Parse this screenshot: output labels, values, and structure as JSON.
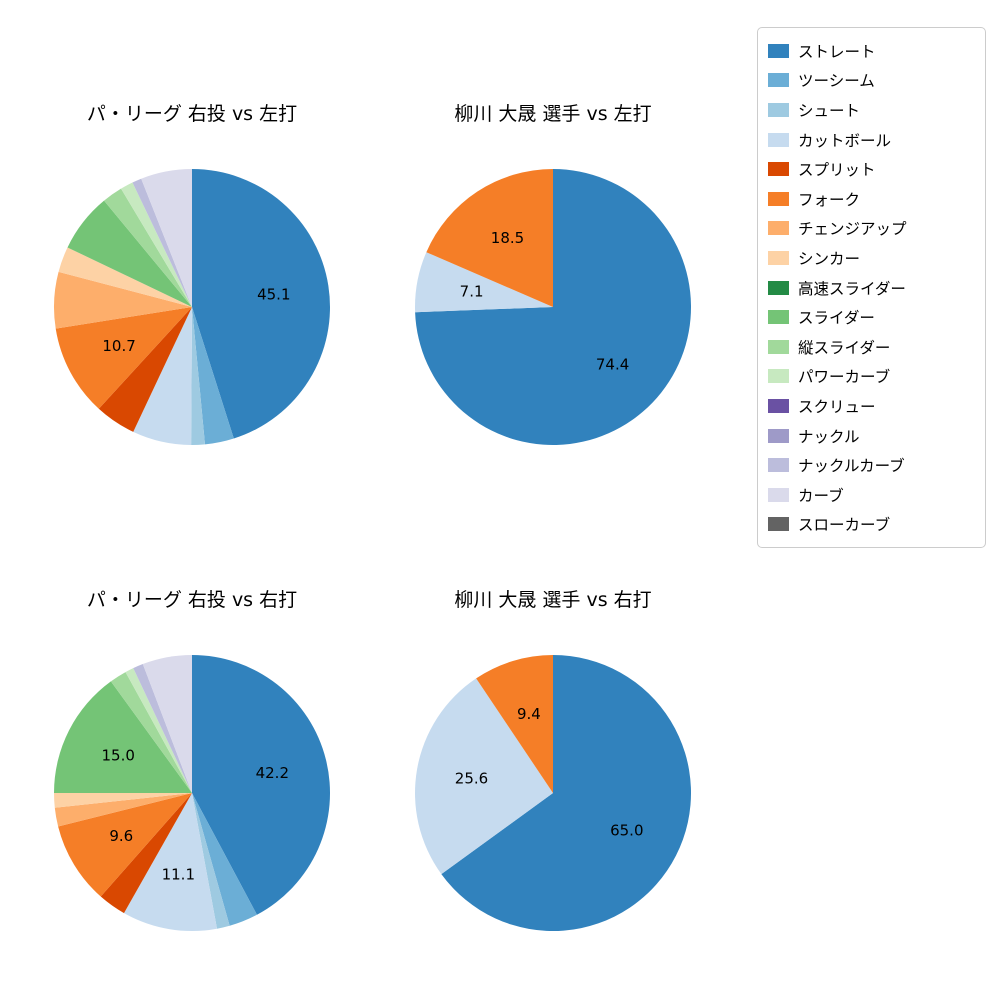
{
  "legend": {
    "position": "top-right",
    "items": [
      {
        "label": "ストレート",
        "color": "#3182bd"
      },
      {
        "label": "ツーシーム",
        "color": "#6baed6"
      },
      {
        "label": "シュート",
        "color": "#9ecae1"
      },
      {
        "label": "カットボール",
        "color": "#c6dbef"
      },
      {
        "label": "スプリット",
        "color": "#d94801"
      },
      {
        "label": "フォーク",
        "color": "#f57e27"
      },
      {
        "label": "チェンジアップ",
        "color": "#fdae6b"
      },
      {
        "label": "シンカー",
        "color": "#fdd2a5"
      },
      {
        "label": "高速スライダー",
        "color": "#238b45"
      },
      {
        "label": "スライダー",
        "color": "#74c476"
      },
      {
        "label": "縦スライダー",
        "color": "#a1d99b"
      },
      {
        "label": "パワーカーブ",
        "color": "#c7e9c0"
      },
      {
        "label": "スクリュー",
        "color": "#6a51a3"
      },
      {
        "label": "ナックル",
        "color": "#9e9ac8"
      },
      {
        "label": "ナックルカーブ",
        "color": "#bcbddc"
      },
      {
        "label": "カーブ",
        "color": "#dadaeb"
      },
      {
        "label": "スローカーブ",
        "color": "#636363"
      }
    ]
  },
  "chart_data": [
    {
      "type": "pie",
      "title": "パ・リーグ 右投 vs 左打",
      "start_angle_deg": 0,
      "direction": "clockwise",
      "label_threshold_pct": 7.0,
      "slices": [
        {
          "label": "ストレート",
          "value": 45.1
        },
        {
          "label": "ツーシーム",
          "value": 3.4
        },
        {
          "label": "シュート",
          "value": 1.6
        },
        {
          "label": "カットボール",
          "value": 6.9
        },
        {
          "label": "スプリット",
          "value": 4.8
        },
        {
          "label": "フォーク",
          "value": 10.7
        },
        {
          "label": "チェンジアップ",
          "value": 6.6
        },
        {
          "label": "シンカー",
          "value": 3.0
        },
        {
          "label": "スライダー",
          "value": 6.9
        },
        {
          "label": "縦スライダー",
          "value": 2.4
        },
        {
          "label": "パワーカーブ",
          "value": 1.5
        },
        {
          "label": "ナックルカーブ",
          "value": 1.1
        },
        {
          "label": "カーブ",
          "value": 6.0
        }
      ]
    },
    {
      "type": "pie",
      "title": "柳川 大晟 選手 vs 左打",
      "start_angle_deg": 0,
      "direction": "clockwise",
      "label_threshold_pct": 7.0,
      "slices": [
        {
          "label": "ストレート",
          "value": 74.4
        },
        {
          "label": "カットボール",
          "value": 7.1
        },
        {
          "label": "フォーク",
          "value": 18.5
        }
      ]
    },
    {
      "type": "pie",
      "title": "パ・リーグ 右投 vs 右打",
      "start_angle_deg": 0,
      "direction": "clockwise",
      "label_threshold_pct": 7.0,
      "slices": [
        {
          "label": "ストレート",
          "value": 42.2
        },
        {
          "label": "ツーシーム",
          "value": 3.4
        },
        {
          "label": "シュート",
          "value": 1.5
        },
        {
          "label": "カットボール",
          "value": 11.1
        },
        {
          "label": "スプリット",
          "value": 3.3
        },
        {
          "label": "フォーク",
          "value": 9.6
        },
        {
          "label": "チェンジアップ",
          "value": 2.2
        },
        {
          "label": "シンカー",
          "value": 1.7
        },
        {
          "label": "スライダー",
          "value": 15.0
        },
        {
          "label": "縦スライダー",
          "value": 2.0
        },
        {
          "label": "パワーカーブ",
          "value": 1.0
        },
        {
          "label": "ナックルカーブ",
          "value": 1.2
        },
        {
          "label": "カーブ",
          "value": 5.8
        }
      ]
    },
    {
      "type": "pie",
      "title": "柳川 大晟 選手 vs 右打",
      "start_angle_deg": 0,
      "direction": "clockwise",
      "label_threshold_pct": 7.0,
      "slices": [
        {
          "label": "ストレート",
          "value": 65.0
        },
        {
          "label": "カットボール",
          "value": 25.6
        },
        {
          "label": "フォーク",
          "value": 9.4
        }
      ]
    }
  ]
}
